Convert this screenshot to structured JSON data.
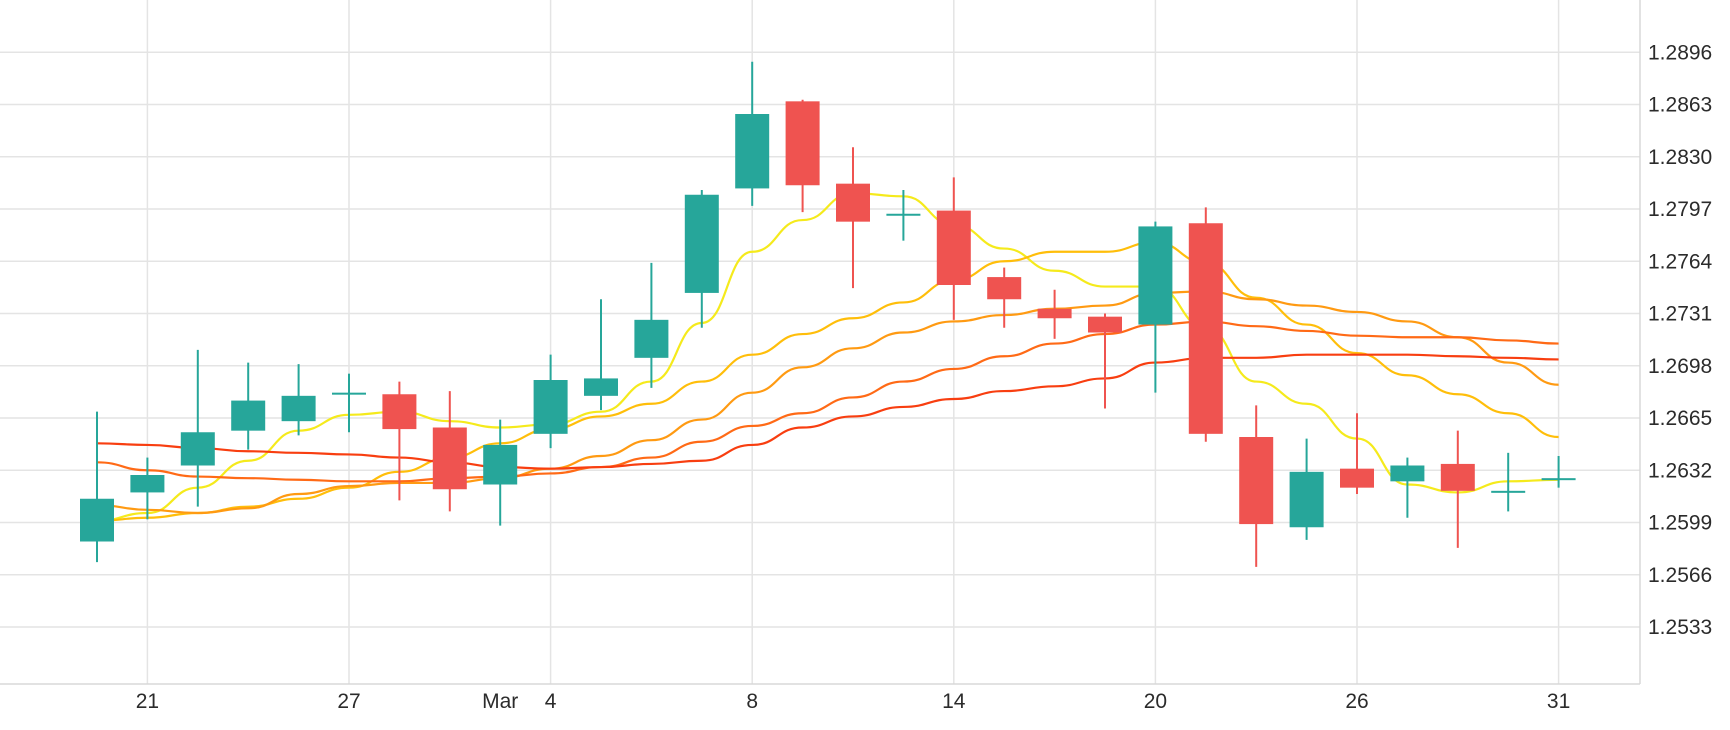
{
  "chart_data": {
    "type": "candlestick",
    "title": "",
    "xlabel": "",
    "ylabel": "",
    "x_tick_labels": [
      {
        "label": "21",
        "at_candle": 1
      },
      {
        "label": "27",
        "at_candle": 5
      },
      {
        "label": "Mar",
        "at_candle": 8
      },
      {
        "label": "4",
        "at_candle": 9
      },
      {
        "label": "8",
        "at_candle": 13
      },
      {
        "label": "14",
        "at_candle": 17
      },
      {
        "label": "20",
        "at_candle": 21
      },
      {
        "label": "26",
        "at_candle": 25
      },
      {
        "label": "31",
        "at_candle": 29
      }
    ],
    "y_ticks": [
      "1.2896",
      "1.2863",
      "1.2830",
      "1.2797",
      "1.2764",
      "1.2731",
      "1.2698",
      "1.2665",
      "1.2632",
      "1.2599",
      "1.2566",
      "1.2533"
    ],
    "ylim": [
      1.2497,
      1.2929
    ],
    "grid": true,
    "y_axis_position": "right",
    "colors": {
      "up": "#26a69a",
      "down": "#ef5350",
      "grid": "#e4e4e4",
      "text": "#2b2b2b"
    },
    "candles": [
      {
        "open": 1.2587,
        "high": 1.2669,
        "low": 1.2574,
        "close": 1.2614
      },
      {
        "open": 1.2618,
        "high": 1.264,
        "low": 1.2601,
        "close": 1.2629
      },
      {
        "open": 1.2635,
        "high": 1.2708,
        "low": 1.2609,
        "close": 1.2656
      },
      {
        "open": 1.2657,
        "high": 1.27,
        "low": 1.2645,
        "close": 1.2676
      },
      {
        "open": 1.2663,
        "high": 1.2699,
        "low": 1.2654,
        "close": 1.2679
      },
      {
        "open": 1.2681,
        "high": 1.2693,
        "low": 1.2656,
        "close": 1.2681
      },
      {
        "open": 1.268,
        "high": 1.2688,
        "low": 1.2613,
        "close": 1.2658
      },
      {
        "open": 1.2659,
        "high": 1.2682,
        "low": 1.2606,
        "close": 1.262
      },
      {
        "open": 1.2623,
        "high": 1.2664,
        "low": 1.2597,
        "close": 1.2648
      },
      {
        "open": 1.2655,
        "high": 1.2705,
        "low": 1.2646,
        "close": 1.2689
      },
      {
        "open": 1.2679,
        "high": 1.274,
        "low": 1.267,
        "close": 1.269
      },
      {
        "open": 1.2703,
        "high": 1.2763,
        "low": 1.2684,
        "close": 1.2727
      },
      {
        "open": 1.2744,
        "high": 1.2809,
        "low": 1.2722,
        "close": 1.2806
      },
      {
        "open": 1.281,
        "high": 1.289,
        "low": 1.2799,
        "close": 1.2857
      },
      {
        "open": 1.2865,
        "high": 1.2866,
        "low": 1.2795,
        "close": 1.2812
      },
      {
        "open": 1.2813,
        "high": 1.2836,
        "low": 1.2747,
        "close": 1.2789
      },
      {
        "open": 1.2794,
        "high": 1.2809,
        "low": 1.2777,
        "close": 1.2794
      },
      {
        "open": 1.2796,
        "high": 1.2817,
        "low": 1.2727,
        "close": 1.2749
      },
      {
        "open": 1.2754,
        "high": 1.276,
        "low": 1.2722,
        "close": 1.274
      },
      {
        "open": 1.2734,
        "high": 1.2746,
        "low": 1.2715,
        "close": 1.2728
      },
      {
        "open": 1.2729,
        "high": 1.2731,
        "low": 1.2671,
        "close": 1.2719
      },
      {
        "open": 1.2724,
        "high": 1.2789,
        "low": 1.2681,
        "close": 1.2786
      },
      {
        "open": 1.2788,
        "high": 1.2798,
        "low": 1.265,
        "close": 1.2655
      },
      {
        "open": 1.2653,
        "high": 1.2673,
        "low": 1.2571,
        "close": 1.2598
      },
      {
        "open": 1.2596,
        "high": 1.2652,
        "low": 1.2588,
        "close": 1.2631
      },
      {
        "open": 1.2633,
        "high": 1.2668,
        "low": 1.2617,
        "close": 1.2621
      },
      {
        "open": 1.2625,
        "high": 1.264,
        "low": 1.2602,
        "close": 1.2635
      },
      {
        "open": 1.2636,
        "high": 1.2657,
        "low": 1.2583,
        "close": 1.2619
      },
      {
        "open": 1.2619,
        "high": 1.2643,
        "low": 1.2606,
        "close": 1.2619
      },
      {
        "open": 1.2627,
        "high": 1.2641,
        "low": 1.2621,
        "close": 1.2627
      }
    ],
    "moving_averages": [
      {
        "color": "#f5ea1c",
        "values": [
          1.26,
          1.2605,
          1.2621,
          1.2638,
          1.2657,
          1.2667,
          1.2669,
          1.2663,
          1.2659,
          1.2661,
          1.2669,
          1.2688,
          1.2725,
          1.277,
          1.279,
          1.2807,
          1.2805,
          1.2787,
          1.2772,
          1.2758,
          1.2748,
          1.2748,
          1.2722,
          1.2688,
          1.2674,
          1.2652,
          1.2623,
          1.2618,
          1.2625,
          1.2626
        ]
      },
      {
        "color": "#ffbe0a",
        "values": null,
        "points": [
          [
            0,
            1.26
          ],
          [
            1,
            1.2602
          ],
          [
            2,
            1.2605
          ],
          [
            3,
            1.2609
          ],
          [
            4,
            1.2614
          ],
          [
            5,
            1.2621
          ],
          [
            6,
            1.2631
          ],
          [
            7,
            1.264
          ],
          [
            8,
            1.2649
          ],
          [
            9,
            1.2658
          ],
          [
            10,
            1.2666
          ],
          [
            11,
            1.2674
          ],
          [
            12,
            1.2688
          ],
          [
            13,
            1.2705
          ],
          [
            14,
            1.2718
          ],
          [
            15,
            1.2728
          ],
          [
            16,
            1.2738
          ],
          [
            17,
            1.2752
          ],
          [
            18,
            1.2764
          ],
          [
            19,
            1.277
          ],
          [
            20,
            1.277
          ],
          [
            21,
            1.2776
          ],
          [
            22,
            1.2763
          ],
          [
            23,
            1.2741
          ],
          [
            24,
            1.2724
          ],
          [
            25,
            1.2706
          ],
          [
            26,
            1.2692
          ],
          [
            27,
            1.268
          ],
          [
            28,
            1.2668
          ],
          [
            29,
            1.2653
          ]
        ]
      },
      {
        "color": "#ff9a12",
        "points": [
          [
            0,
            1.261
          ],
          [
            1,
            1.2607
          ],
          [
            2,
            1.2605
          ],
          [
            3,
            1.2608
          ],
          [
            4,
            1.2617
          ],
          [
            5,
            1.2622
          ],
          [
            6,
            1.2624
          ],
          [
            7,
            1.2624
          ],
          [
            8,
            1.2627
          ],
          [
            9,
            1.2633
          ],
          [
            10,
            1.2641
          ],
          [
            11,
            1.2651
          ],
          [
            12,
            1.2664
          ],
          [
            13,
            1.2681
          ],
          [
            14,
            1.2697
          ],
          [
            15,
            1.2709
          ],
          [
            16,
            1.2719
          ],
          [
            17,
            1.2726
          ],
          [
            18,
            1.273
          ],
          [
            19,
            1.2734
          ],
          [
            20,
            1.2736
          ],
          [
            21,
            1.2744
          ],
          [
            22,
            1.2745
          ],
          [
            23,
            1.274
          ],
          [
            24,
            1.2736
          ],
          [
            25,
            1.2732
          ],
          [
            26,
            1.2726
          ],
          [
            27,
            1.2716
          ],
          [
            28,
            1.27
          ],
          [
            29,
            1.2686
          ]
        ]
      },
      {
        "color": "#ff6a16",
        "points": [
          [
            0,
            1.2637
          ],
          [
            1,
            1.2632
          ],
          [
            2,
            1.2628
          ],
          [
            3,
            1.2627
          ],
          [
            4,
            1.2626
          ],
          [
            5,
            1.2625
          ],
          [
            6,
            1.2625
          ],
          [
            7,
            1.2627
          ],
          [
            8,
            1.2628
          ],
          [
            9,
            1.263
          ],
          [
            10,
            1.2634
          ],
          [
            11,
            1.264
          ],
          [
            12,
            1.265
          ],
          [
            13,
            1.266
          ],
          [
            14,
            1.2668
          ],
          [
            15,
            1.2678
          ],
          [
            16,
            1.2688
          ],
          [
            17,
            1.2696
          ],
          [
            18,
            1.2704
          ],
          [
            19,
            1.2712
          ],
          [
            20,
            1.2718
          ],
          [
            21,
            1.2724
          ],
          [
            22,
            1.2726
          ],
          [
            23,
            1.2723
          ],
          [
            24,
            1.272
          ],
          [
            25,
            1.2717
          ],
          [
            26,
            1.2716
          ],
          [
            27,
            1.2716
          ],
          [
            28,
            1.2714
          ],
          [
            29,
            1.2712
          ]
        ]
      },
      {
        "color": "#f83e10",
        "points": [
          [
            0,
            1.2649
          ],
          [
            1,
            1.2648
          ],
          [
            2,
            1.2646
          ],
          [
            3,
            1.2644
          ],
          [
            4,
            1.2643
          ],
          [
            5,
            1.2642
          ],
          [
            6,
            1.264
          ],
          [
            7,
            1.2637
          ],
          [
            8,
            1.2634
          ],
          [
            9,
            1.2633
          ],
          [
            10,
            1.2634
          ],
          [
            11,
            1.2636
          ],
          [
            12,
            1.2638
          ],
          [
            13,
            1.2648
          ],
          [
            14,
            1.2659
          ],
          [
            15,
            1.2666
          ],
          [
            16,
            1.2672
          ],
          [
            17,
            1.2677
          ],
          [
            18,
            1.2682
          ],
          [
            19,
            1.2685
          ],
          [
            20,
            1.269
          ],
          [
            21,
            1.27
          ],
          [
            22,
            1.2703
          ],
          [
            23,
            1.2703
          ],
          [
            24,
            1.2705
          ],
          [
            25,
            1.2705
          ],
          [
            26,
            1.2705
          ],
          [
            27,
            1.2704
          ],
          [
            28,
            1.2703
          ],
          [
            29,
            1.2702
          ]
        ]
      }
    ]
  }
}
